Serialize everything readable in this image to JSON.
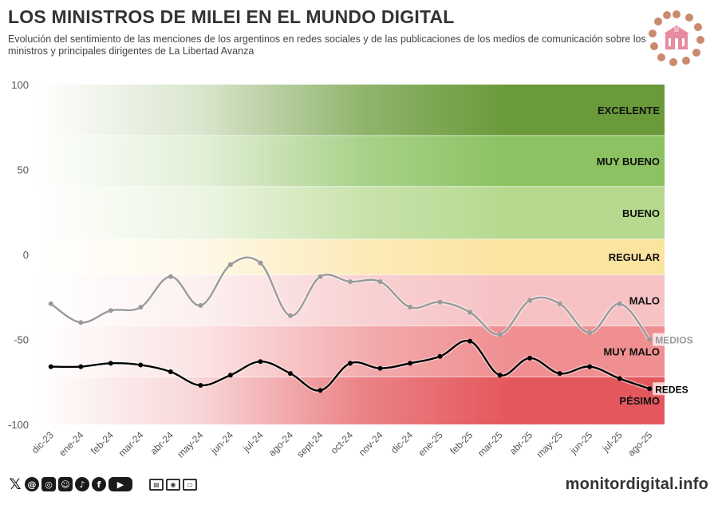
{
  "header": {
    "title": "LOS MINISTROS DE MILEI EN EL MUNDO DIGITAL",
    "subtitle": "Evolución del sentimiento de las menciones de los argentinos en redes sociales y de las publicaciones de los medios de comunicación sobre los ministros y principales dirigentes de La Libertad Avanza"
  },
  "footer": {
    "site": "monitordigital.info",
    "social_icons": [
      "x-icon",
      "threads-icon",
      "instagram-icon",
      "social-icon",
      "tiktok-icon",
      "facebook-icon",
      "youtube-icon"
    ],
    "media_icons": [
      "newspaper-icon",
      "radio-icon",
      "tv-icon"
    ]
  },
  "chart_data": {
    "type": "line",
    "title": "LOS MINISTROS DE MILEI EN EL MUNDO DIGITAL",
    "xlabel": "",
    "ylabel": "",
    "ylim": [
      -100,
      100
    ],
    "yticks": [
      100,
      50,
      0,
      -50,
      -100
    ],
    "grid": false,
    "categories": [
      "dic-23",
      "ene-24",
      "feb-24",
      "mar-24",
      "abr-24",
      "may-24",
      "jun-24",
      "jul-24",
      "ago-24",
      "sept-24",
      "oct-24",
      "nov-24",
      "dic-24",
      "ene-25",
      "feb-25",
      "mar-25",
      "abr-25",
      "may-25",
      "jun-25",
      "jul-25",
      "ago-25"
    ],
    "series": [
      {
        "name": "MEDIOS",
        "color": "#9a9a9a",
        "values": [
          -29,
          -40,
          -33,
          -31,
          -13,
          -30,
          -6,
          -5,
          -36,
          -13,
          -16,
          -16,
          -31,
          -28,
          -34,
          -47,
          -27,
          -29,
          -46,
          -29,
          -50
        ]
      },
      {
        "name": "REDES",
        "color": "#000000",
        "values": [
          -66,
          -66,
          -64,
          -65,
          -69,
          -77,
          -71,
          -63,
          -70,
          -80,
          -64,
          -67,
          -64,
          -60,
          -51,
          -71,
          -61,
          -70,
          -66,
          -73,
          -79
        ]
      }
    ],
    "bands": [
      {
        "label": "EXCELENTE",
        "from": 70,
        "to": 100,
        "color": "#6a9a3a"
      },
      {
        "label": "MUY BUENO",
        "from": 40,
        "to": 70,
        "color": "#8cc262"
      },
      {
        "label": "BUENO",
        "from": 9,
        "to": 40,
        "color": "#b6d98f"
      },
      {
        "label": "REGULAR",
        "from": -12,
        "to": 9,
        "color": "#fbe3a0"
      },
      {
        "label": "MALO",
        "from": -42,
        "to": -12,
        "color": "#f6c2c4"
      },
      {
        "label": "MUY MALO",
        "from": -72,
        "to": -42,
        "color": "#ef8f92"
      },
      {
        "label": "PÉSIMO",
        "from": -100,
        "to": -72,
        "color": "#e4585d"
      }
    ]
  }
}
